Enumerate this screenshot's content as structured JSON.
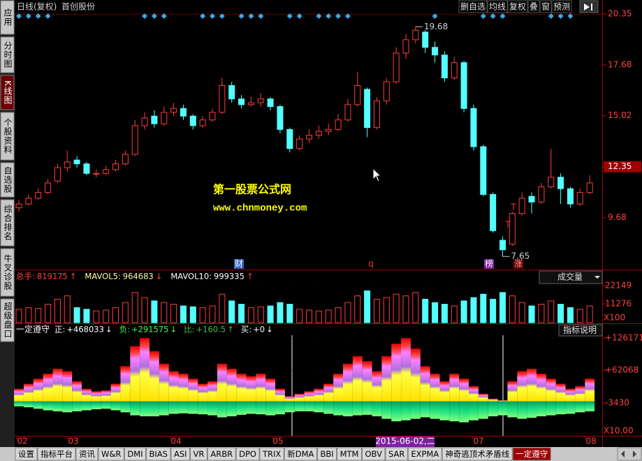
{
  "sidebar": [
    "应用",
    "分时图",
    "K线图",
    "个股资料",
    "自选股",
    "综合排名",
    "牛叉诊股",
    "超级盘口"
  ],
  "header": {
    "period": "日线(复权)",
    "stock": "首创股份",
    "buttons": [
      "删自选",
      "均线",
      "复权",
      "叠",
      "窗",
      "预测"
    ]
  },
  "price_panel": {
    "ylim": [
      7.0,
      20.64
    ],
    "yticks": [
      20.35,
      17.68,
      15.02,
      12.35,
      9.68
    ],
    "high_label": 19.68,
    "low_label": 7.65,
    "watermark": [
      "第一股票公式网",
      "www.chnmoney.com"
    ],
    "markers": [
      "财",
      "q",
      "榜",
      "涨"
    ],
    "t_marks": [
      "T",
      "T"
    ],
    "candles": [
      [
        10.2,
        10.4,
        10.6,
        10.0
      ],
      [
        10.4,
        10.7,
        10.9,
        10.3
      ],
      [
        10.7,
        11.0,
        11.2,
        10.6
      ],
      [
        11.0,
        11.5,
        11.7,
        10.9
      ],
      [
        11.6,
        12.3,
        12.5,
        11.5
      ],
      [
        12.3,
        12.6,
        13.2,
        12.1
      ],
      [
        12.7,
        12.5,
        12.9,
        12.3
      ],
      [
        12.5,
        12.0,
        12.6,
        11.9
      ],
      [
        12.0,
        12.0,
        12.2,
        11.8
      ],
      [
        12.0,
        12.2,
        12.4,
        11.9
      ],
      [
        12.2,
        12.5,
        12.7,
        12.1
      ],
      [
        12.5,
        13.0,
        13.2,
        12.4
      ],
      [
        13.0,
        14.5,
        14.8,
        12.9
      ],
      [
        14.5,
        14.9,
        15.2,
        14.3
      ],
      [
        15.0,
        14.6,
        15.3,
        14.4
      ],
      [
        14.6,
        15.2,
        15.5,
        14.5
      ],
      [
        15.2,
        15.4,
        15.7,
        15.0
      ],
      [
        15.4,
        15.0,
        15.6,
        14.8
      ],
      [
        15.0,
        14.5,
        15.1,
        14.3
      ],
      [
        14.5,
        14.8,
        15.0,
        14.4
      ],
      [
        14.8,
        15.2,
        15.4,
        14.7
      ],
      [
        15.2,
        16.6,
        17.0,
        15.1
      ],
      [
        16.6,
        15.9,
        16.8,
        15.7
      ],
      [
        15.9,
        15.6,
        16.1,
        15.4
      ],
      [
        15.6,
        15.7,
        16.0,
        15.5
      ],
      [
        15.7,
        15.9,
        16.2,
        15.5
      ],
      [
        15.9,
        15.5,
        16.0,
        15.3
      ],
      [
        15.5,
        14.3,
        15.6,
        14.1
      ],
      [
        14.3,
        13.3,
        14.4,
        13.1
      ],
      [
        13.3,
        13.8,
        14.0,
        13.2
      ],
      [
        13.8,
        14.0,
        14.3,
        13.6
      ],
      [
        14.0,
        14.2,
        14.5,
        13.8
      ],
      [
        14.2,
        14.3,
        14.6,
        14.0
      ],
      [
        14.3,
        14.8,
        15.1,
        14.2
      ],
      [
        14.8,
        15.6,
        15.9,
        14.7
      ],
      [
        15.6,
        16.6,
        17.3,
        15.5
      ],
      [
        16.4,
        14.4,
        16.5,
        13.9
      ],
      [
        14.4,
        15.8,
        16.0,
        14.3
      ],
      [
        15.8,
        16.8,
        17.0,
        15.6
      ],
      [
        16.8,
        18.3,
        18.6,
        16.7
      ],
      [
        18.3,
        19.0,
        19.3,
        18.0
      ],
      [
        19.0,
        19.5,
        19.68,
        18.8
      ],
      [
        19.4,
        18.6,
        19.5,
        18.3
      ],
      [
        18.6,
        18.2,
        18.9,
        17.8
      ],
      [
        18.2,
        17.0,
        18.4,
        16.8
      ],
      [
        17.0,
        17.8,
        18.1,
        16.9
      ],
      [
        17.8,
        15.4,
        17.9,
        15.2
      ],
      [
        15.4,
        13.4,
        15.6,
        13.2
      ],
      [
        13.4,
        10.9,
        13.5,
        10.8
      ],
      [
        10.9,
        9.0,
        11.0,
        8.9
      ],
      [
        8.5,
        8.0,
        8.7,
        7.65
      ],
      [
        8.3,
        9.9,
        10.0,
        8.2
      ],
      [
        9.9,
        10.7,
        11.0,
        9.8
      ],
      [
        10.8,
        10.5,
        11.0,
        9.9
      ],
      [
        10.5,
        11.3,
        11.5,
        10.4
      ],
      [
        11.3,
        11.8,
        13.3,
        11.2
      ],
      [
        11.8,
        11.2,
        12.0,
        10.4
      ],
      [
        11.2,
        10.4,
        11.3,
        10.2
      ],
      [
        10.4,
        11.0,
        11.2,
        10.3
      ],
      [
        11.0,
        11.5,
        11.9,
        10.9
      ]
    ]
  },
  "volume_panel": {
    "items": [
      {
        "label": "总手:",
        "value": 819175,
        "trend": "↑"
      },
      {
        "label": "MAVOL5:",
        "value": 964683,
        "trend": "↓"
      },
      {
        "label": "MAVOL10:",
        "value": 999335,
        "trend": "↑"
      }
    ],
    "dropdown": "成交量",
    "ylim": [
      0,
      30000
    ],
    "yticks": [
      22149,
      11276
    ],
    "unit": "X100",
    "values": [
      8000,
      9000,
      8500,
      11000,
      14000,
      16000,
      9000,
      8000,
      7000,
      7500,
      9000,
      12000,
      18000,
      15000,
      13000,
      12000,
      11000,
      10000,
      9500,
      9000,
      10000,
      17000,
      13000,
      11000,
      9000,
      9500,
      10000,
      12000,
      11000,
      8000,
      7500,
      7000,
      7500,
      9000,
      12000,
      16000,
      19000,
      14000,
      15000,
      17000,
      16000,
      18000,
      14000,
      12000,
      11000,
      10000,
      13000,
      15000,
      17000,
      14000,
      18000,
      16000,
      12000,
      10000,
      11000,
      13000,
      11000,
      9000,
      8000,
      10000
    ]
  },
  "indicator_panel": {
    "name": "一定遵守",
    "items": [
      {
        "label": "正:",
        "value_label": "+468033",
        "trend": "↓"
      },
      {
        "label": "负:",
        "value_label": "+291575",
        "trend": "↓"
      },
      {
        "label": "比:",
        "value_label": "+160.5",
        "trend": "↑"
      },
      {
        "label": "买:",
        "value_label": "+0",
        "trend": "↓"
      }
    ],
    "button": "指标说明",
    "ylim": [
      -70400,
      134500
    ],
    "yticks": [
      {
        "value": 126171,
        "label": "+126171"
      },
      {
        "value": 62068,
        "label": "+62068"
      },
      -3430
    ],
    "unit": "X10.00",
    "positive": [
      25000,
      35000,
      45000,
      55000,
      65000,
      60000,
      40000,
      25000,
      20000,
      22000,
      35000,
      70000,
      110000,
      126000,
      100000,
      75000,
      60000,
      55000,
      45000,
      35000,
      40000,
      75000,
      65000,
      55000,
      50000,
      55000,
      45000,
      25000,
      10000,
      15000,
      20000,
      25000,
      35000,
      55000,
      75000,
      90000,
      80000,
      60000,
      90000,
      115000,
      126000,
      105000,
      70000,
      55000,
      40000,
      55000,
      45000,
      30000,
      15000,
      5000,
      2000,
      40000,
      60000,
      65000,
      55000,
      45000,
      35000,
      25000,
      30000,
      45000
    ],
    "negative": [
      -10000,
      -12000,
      -15000,
      -18000,
      -20000,
      -22000,
      -20000,
      -18000,
      -16000,
      -15000,
      -18000,
      -22000,
      -28000,
      -30000,
      -30000,
      -28000,
      -25000,
      -24000,
      -25000,
      -26000,
      -28000,
      -32000,
      -30000,
      -27000,
      -25000,
      -26000,
      -28000,
      -26000,
      -22000,
      -20000,
      -20000,
      -22000,
      -25000,
      -28000,
      -30000,
      -28000,
      -27000,
      -30000,
      -35000,
      -40000,
      -38000,
      -35000,
      -32000,
      -35000,
      -38000,
      -40000,
      -42000,
      -38000,
      -35000,
      -30000,
      -28000,
      -32000,
      -35000,
      -33000,
      -30000,
      -28000,
      -26000,
      -25000,
      -22000,
      -20000
    ]
  },
  "date_labels": [
    "02",
    "03",
    "04",
    "05",
    "2015-06-02,二",
    "07",
    "08"
  ],
  "tabs": [
    "设置",
    "指标平台",
    "资讯",
    "W&R",
    "DMI",
    "BIAS",
    "ASI",
    "VR",
    "ARBR",
    "DPO",
    "TRIX",
    "新DMA",
    "BBI",
    "MTM",
    "OBV",
    "SAR",
    "EXPMA",
    "神奇逃顶术矛盾线",
    "一定遵守"
  ]
}
